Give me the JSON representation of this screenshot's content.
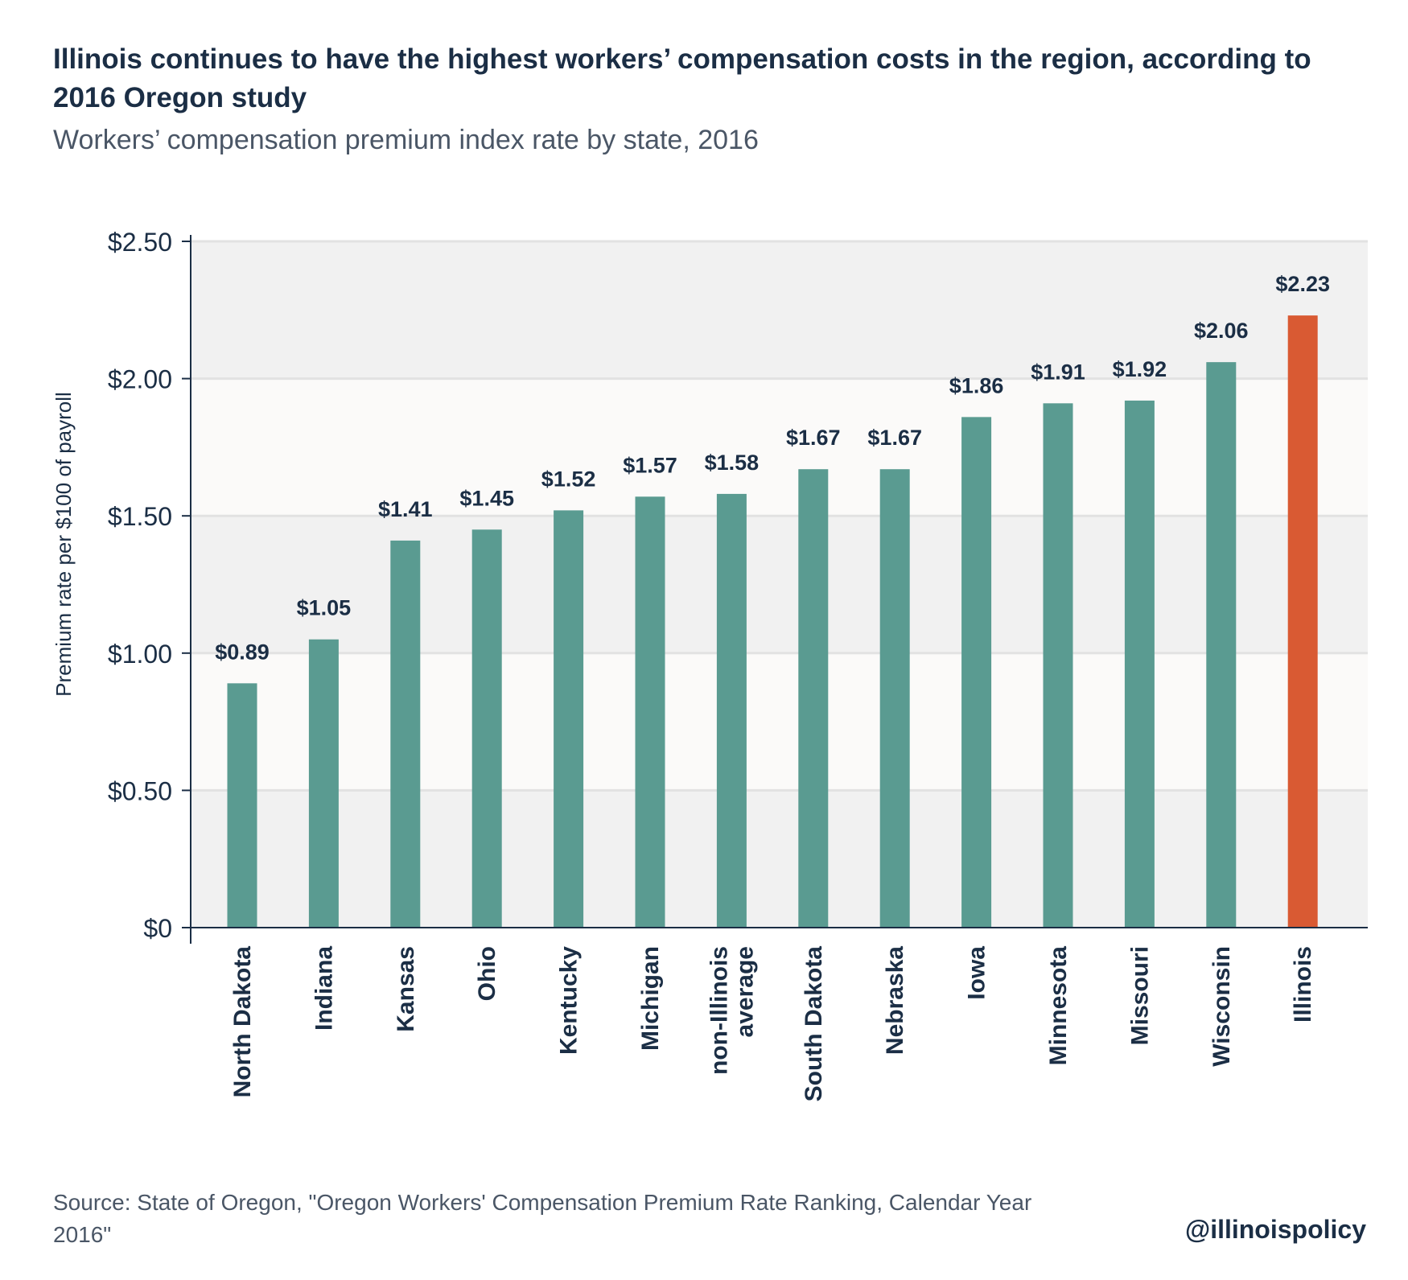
{
  "title": "Illinois continues to have the highest workers’ compensation costs in the region, according to 2016 Oregon study",
  "subtitle": "Workers’ compensation premium index rate by state, 2016",
  "source": "Source: State of Oregon, \"Oregon Workers' Compensation Premium Rate Ranking, Calendar Year 2016\"",
  "handle": "@illinoispolicy",
  "colors": {
    "bar": "#5a9b91",
    "highlight": "#d95a33",
    "text": "#1b2e45",
    "band_dark": "#f1f1f1",
    "band_light": "#fbfaf9",
    "grid": "#e2e2e2",
    "axis": "#1b2e45"
  },
  "chart_data": {
    "type": "bar",
    "title": "Illinois continues to have the highest workers’ compensation costs in the region, according to 2016 Oregon study",
    "subtitle": "Workers’ compensation premium index rate by state, 2016",
    "xlabel": "",
    "ylabel": "Premium rate per $100 of payroll",
    "ylim": [
      0,
      2.5
    ],
    "yticks": [
      0,
      0.5,
      1.0,
      1.5,
      2.0,
      2.5
    ],
    "ytick_labels": [
      "$0",
      "$0.50",
      "$1.00",
      "$1.50",
      "$2.00",
      "$2.50"
    ],
    "grid": true,
    "categories": [
      "North Dakota",
      "Indiana",
      "Kansas",
      "Ohio",
      "Kentucky",
      "Michigan",
      "non-Illinois average",
      "South Dakota",
      "Nebraska",
      "Iowa",
      "Minnesota",
      "Missouri",
      "Wisconsin",
      "Illinois"
    ],
    "values": [
      0.89,
      1.05,
      1.41,
      1.45,
      1.52,
      1.57,
      1.58,
      1.67,
      1.67,
      1.86,
      1.91,
      1.92,
      2.06,
      2.23
    ],
    "value_labels": [
      "$0.89",
      "$1.05",
      "$1.41",
      "$1.45",
      "$1.52",
      "$1.57",
      "$1.58",
      "$1.67",
      "$1.67",
      "$1.86",
      "$1.91",
      "$1.92",
      "$2.06",
      "$2.23"
    ],
    "highlight_category": "Illinois"
  }
}
